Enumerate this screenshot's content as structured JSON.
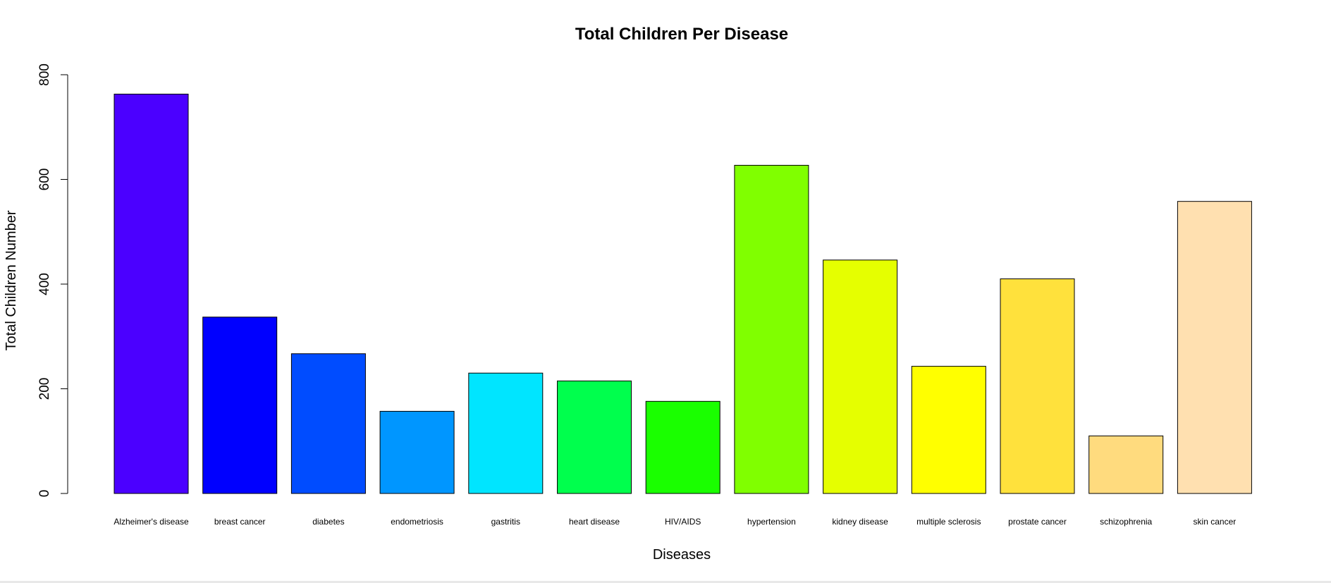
{
  "chart_data": {
    "type": "bar",
    "title": "Total Children Per Disease",
    "xlabel": "Diseases",
    "ylabel": "Total Children Number",
    "ylim": [
      0,
      800
    ],
    "yticks": [
      0,
      200,
      400,
      600,
      800
    ],
    "grid": false,
    "legend": "none",
    "categories": [
      "Alzheimer's disease",
      "breast cancer",
      "diabetes",
      "endometriosis",
      "gastritis",
      "heart disease",
      "HIV/AIDS",
      "hypertension",
      "kidney disease",
      "multiple sclerosis",
      "prostate cancer",
      "schizophrenia",
      "skin cancer"
    ],
    "values": [
      763,
      337,
      267,
      157,
      230,
      215,
      176,
      627,
      446,
      243,
      410,
      110,
      558
    ],
    "colors": [
      "#4B00FF",
      "#0000FF",
      "#004CFF",
      "#0096FF",
      "#00E5FF",
      "#00FF4D",
      "#1AFF00",
      "#80FF00",
      "#E5FF00",
      "#FFFF00",
      "#FFE13C",
      "#FFDB7E",
      "#FFE0B0"
    ]
  }
}
